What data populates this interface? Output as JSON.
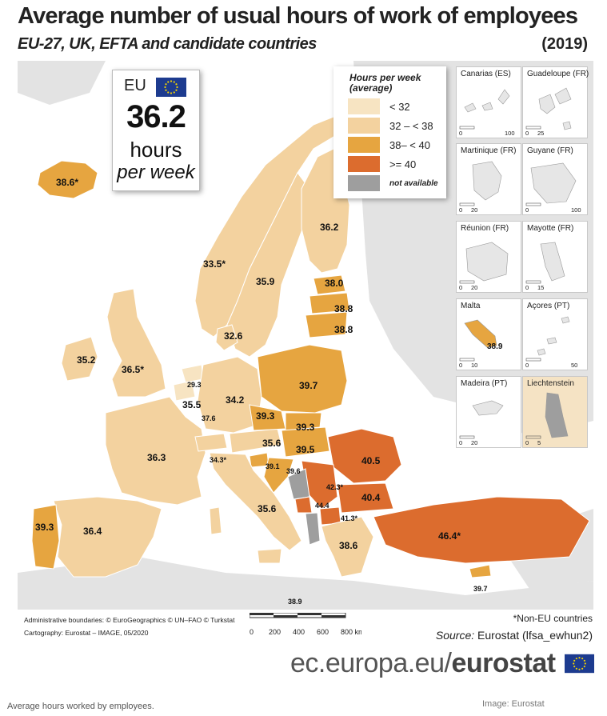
{
  "header": {
    "title": "Average number of usual hours of work of employees",
    "subtitle": "EU-27, UK, EFTA and candidate countries",
    "year": "(2019)"
  },
  "eu_box": {
    "label": "EU",
    "value": "36.2",
    "unit": "hours",
    "per": "per week"
  },
  "legend": {
    "title_line1": "Hours per week",
    "title_line2": "(average)",
    "classes": [
      {
        "label": "< 32",
        "color": "#f7e4c2"
      },
      {
        "label": "32 – < 38",
        "color": "#f3d29f"
      },
      {
        "label": "38– < 40",
        "color": "#e6a540"
      },
      {
        "label": ">= 40",
        "color": "#dc6c2e"
      },
      {
        "label": "not available",
        "color": "#9e9e9e"
      }
    ]
  },
  "colors": {
    "sea": "#ffffff",
    "land_other": "#e3e3e3",
    "border": "#ffffff"
  },
  "country_values": [
    {
      "value": "38.6",
      "suffix": "*"
    },
    {
      "value": "36.2"
    },
    {
      "value": "33.5",
      "suffix": "*"
    },
    {
      "value": "35.9"
    },
    {
      "value": "38.0"
    },
    {
      "value": "38.8"
    },
    {
      "value": "38.8"
    },
    {
      "value": "32.6"
    },
    {
      "value": "35.2"
    },
    {
      "value": "36.5",
      "suffix": "*"
    },
    {
      "value": "29.3"
    },
    {
      "value": "34.2"
    },
    {
      "value": "39.7"
    },
    {
      "value": "35.5"
    },
    {
      "value": "37.6"
    },
    {
      "value": "39.3"
    },
    {
      "value": "39.3"
    },
    {
      "value": "36.3"
    },
    {
      "value": "34.3",
      "suffix": "*"
    },
    {
      "value": "35.6"
    },
    {
      "value": "39.5"
    },
    {
      "value": "40.5"
    },
    {
      "value": "39.1"
    },
    {
      "value": "39.6"
    },
    {
      "value": "42.3",
      "suffix": "*"
    },
    {
      "value": "40.4"
    },
    {
      "value": "44.4"
    },
    {
      "value": "41.3",
      "suffix": "*"
    },
    {
      "value": "35.6"
    },
    {
      "value": "39.3"
    },
    {
      "value": "36.4"
    },
    {
      "value": "38.6"
    },
    {
      "value": "46.4",
      "suffix": "*"
    },
    {
      "value": "39.7"
    },
    {
      "value": "38.9"
    }
  ],
  "insets": [
    {
      "name": "Canarias (ES)",
      "scale": [
        "0",
        "100"
      ]
    },
    {
      "name": "Guadeloupe (FR)",
      "scale": [
        "0",
        "25"
      ]
    },
    {
      "name": "Martinique (FR)",
      "scale": [
        "0",
        "20"
      ]
    },
    {
      "name": "Guyane (FR)",
      "scale": [
        "0",
        "100"
      ]
    },
    {
      "name": "Réunion (FR)",
      "scale": [
        "0",
        "20"
      ]
    },
    {
      "name": "Mayotte (FR)",
      "scale": [
        "0",
        "15"
      ]
    },
    {
      "name": "Malta",
      "value": "38.9",
      "scale": [
        "0",
        "10"
      ]
    },
    {
      "name": "Açores (PT)",
      "scale": [
        "0",
        "50"
      ]
    },
    {
      "name": "Madeira (PT)",
      "scale": [
        "0",
        "20"
      ]
    },
    {
      "name": "Liechtenstein",
      "scale": [
        "0",
        "5"
      ]
    }
  ],
  "scale_bar": {
    "ticks": [
      "0",
      "200",
      "400",
      "600",
      "800 km"
    ]
  },
  "footer": {
    "boundaries": "Administrative boundaries: © EuroGeographics © UN–FAO © Turkstat",
    "cartography": "Cartography: Eurostat – IMAGE, 05/2020",
    "non_eu": "*Non-EU countries",
    "source_label": "Source:",
    "source_text": "Eurostat (lfsa_ewhun2)",
    "brand_light": "ec.europa.eu/",
    "brand_bold": "eurostat",
    "caption": "Average hours worked by employees.",
    "credit": "Image: Eurostat"
  }
}
